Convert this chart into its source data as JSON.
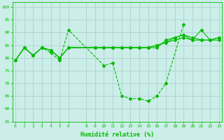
{
  "xlabel": "Humidité relative (%)",
  "background_color": "#cceee8",
  "grid_color": "#aacccc",
  "line_color": "#00bb00",
  "xlim": [
    0,
    23
  ],
  "ylim": [
    55,
    102
  ],
  "yticks": [
    55,
    60,
    65,
    70,
    75,
    80,
    85,
    90,
    95,
    100
  ],
  "xticks": [
    0,
    1,
    2,
    3,
    4,
    5,
    6,
    8,
    9,
    10,
    11,
    12,
    13,
    14,
    15,
    16,
    17,
    18,
    19,
    20,
    21,
    22,
    23
  ],
  "line1_x": [
    0,
    1,
    2,
    3,
    4,
    5,
    6,
    10,
    11,
    12,
    13,
    14,
    15,
    16,
    17,
    19
  ],
  "line1_y": [
    79,
    84,
    81,
    84,
    82,
    79,
    91,
    77,
    78,
    65,
    64,
    64,
    63,
    65,
    70,
    93
  ],
  "line1_style": "--",
  "line2_x": [
    0,
    1,
    2,
    3,
    4,
    5,
    6,
    9,
    10,
    11,
    12,
    13,
    14,
    15,
    16,
    17,
    18,
    19,
    20,
    21,
    22,
    23
  ],
  "line2_y": [
    79,
    84,
    81,
    84,
    83,
    80,
    84,
    84,
    84,
    84,
    84,
    84,
    84,
    84,
    85,
    86,
    87,
    88,
    87,
    87,
    87,
    87
  ],
  "line2_style": "-",
  "line3_x": [
    0,
    1,
    2,
    3,
    4,
    5,
    6,
    9,
    10,
    11,
    12,
    13,
    14,
    15,
    16,
    17,
    18,
    19,
    20,
    21,
    22,
    23
  ],
  "line3_y": [
    79,
    84,
    81,
    84,
    83,
    80,
    84,
    84,
    84,
    84,
    84,
    84,
    84,
    84,
    84,
    87,
    88,
    89,
    87,
    91,
    87,
    88
  ],
  "line3_style": "-",
  "line4_x": [
    0,
    1,
    2,
    3,
    4,
    5,
    6,
    9,
    10,
    11,
    12,
    13,
    14,
    15,
    16,
    17,
    18,
    19,
    20,
    21,
    22,
    23
  ],
  "line4_y": [
    79,
    84,
    81,
    84,
    83,
    80,
    84,
    84,
    84,
    84,
    84,
    84,
    84,
    84,
    85,
    86,
    88,
    89,
    88,
    87,
    87,
    88
  ],
  "line4_style": "-"
}
